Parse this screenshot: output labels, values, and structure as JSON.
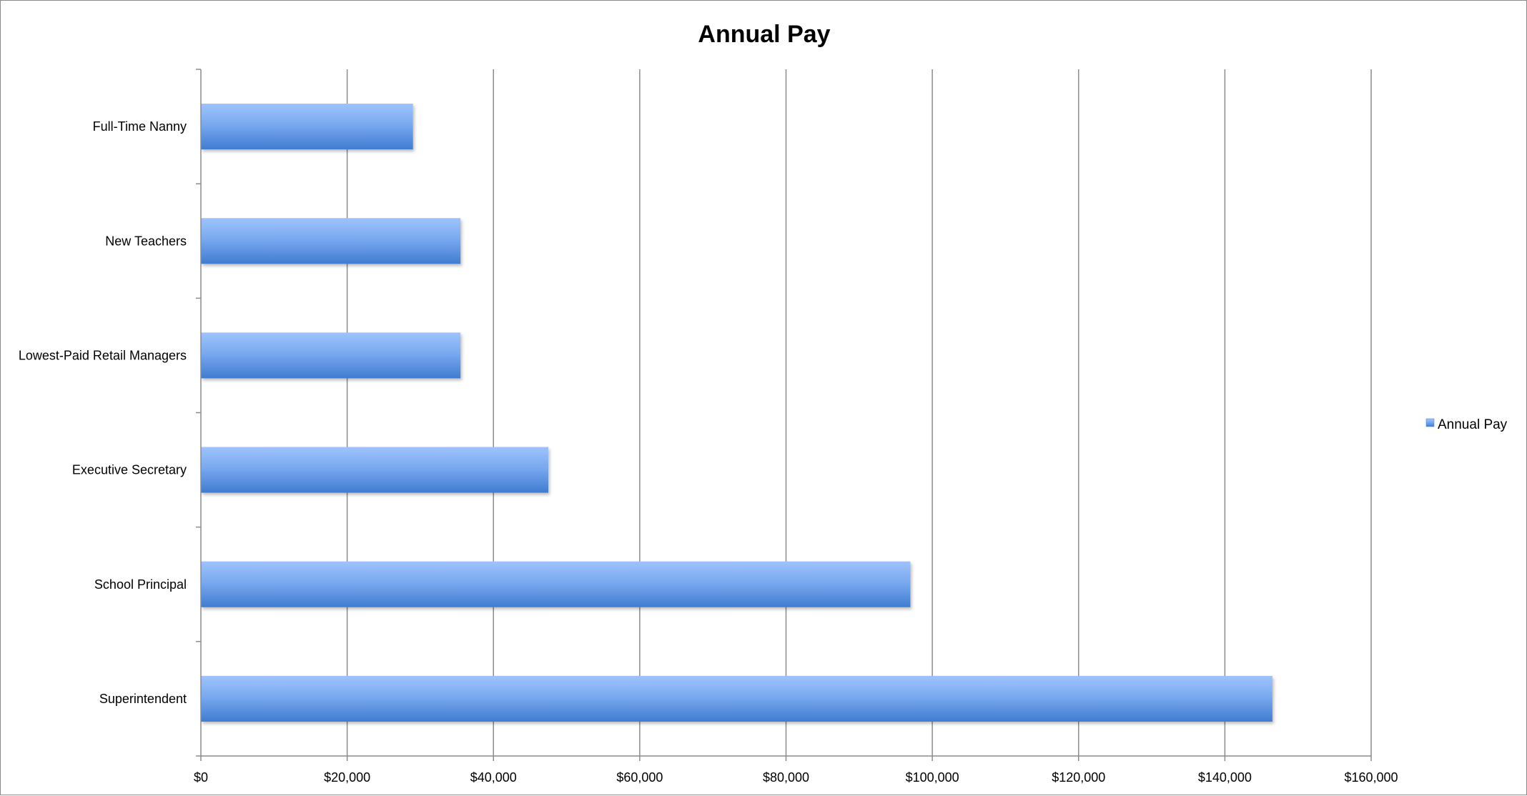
{
  "chart_data": {
    "type": "bar",
    "orientation": "horizontal",
    "title": "Annual Pay",
    "xlabel": "",
    "ylabel": "",
    "categories": [
      "Full-Time Nanny",
      "New Teachers",
      "Lowest-Paid Retail Managers",
      "Executive Secretary",
      "School Principal",
      "Superintendent"
    ],
    "series": [
      {
        "name": "Annual Pay",
        "values": [
          29000,
          35500,
          35500,
          47500,
          97000,
          146500
        ],
        "color": "#5b8fdc"
      }
    ],
    "xlim": [
      0,
      160000
    ],
    "x_ticks": [
      0,
      20000,
      40000,
      60000,
      80000,
      100000,
      120000,
      140000,
      160000
    ],
    "x_tick_labels": [
      "$0",
      "$20,000",
      "$40,000",
      "$60,000",
      "$80,000",
      "$100,000",
      "$120,000",
      "$140,000",
      "$160,000"
    ],
    "grid": "vertical major gridlines",
    "legend_position": "right",
    "colors": {
      "bar_top": "#9ec3fb",
      "bar_bottom": "#3f7cd2",
      "gridline": "#8c8c8c",
      "axis": "#8c8c8c"
    }
  }
}
